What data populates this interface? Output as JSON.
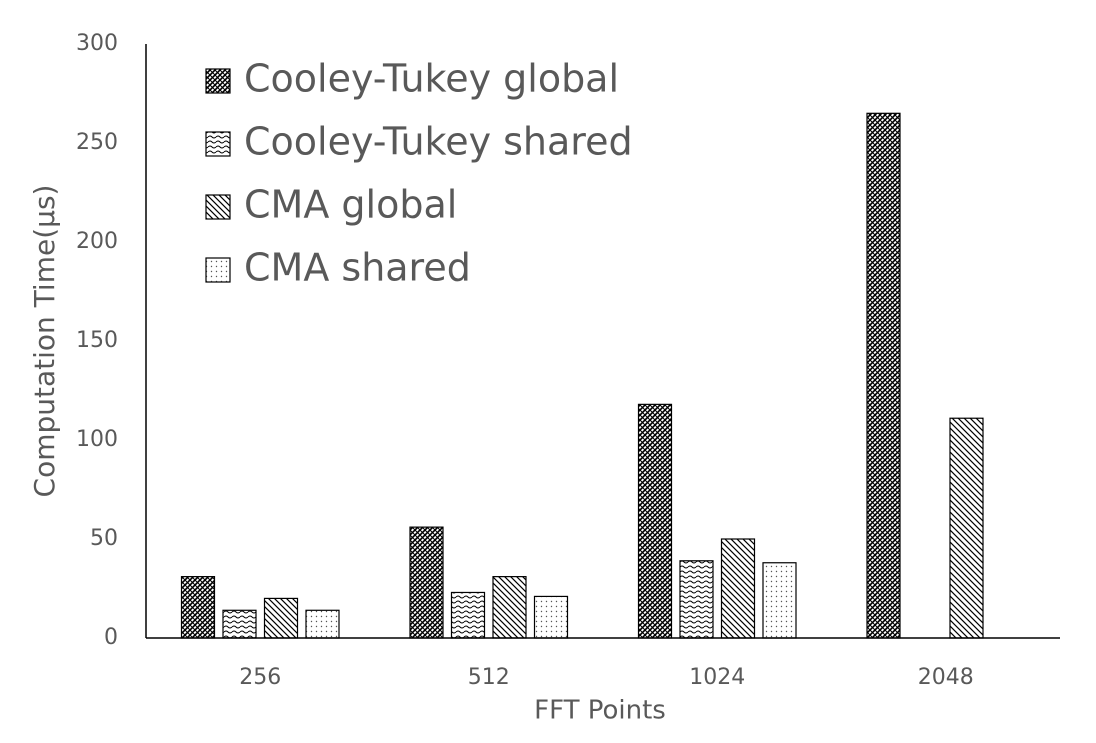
{
  "chart_data": {
    "type": "bar",
    "x_label": "FFT Points",
    "y_label": "Computation Time(μs)",
    "categories": [
      "256",
      "512",
      "1024",
      "2048"
    ],
    "series": [
      {
        "name": "Cooley-Tukey global",
        "pattern": "crosshatch",
        "values": [
          31,
          56,
          118,
          265
        ]
      },
      {
        "name": "Cooley-Tukey shared",
        "pattern": "wave",
        "values": [
          14,
          23,
          39,
          null
        ]
      },
      {
        "name": "CMA global",
        "pattern": "diagonal",
        "values": [
          20,
          31,
          50,
          111
        ]
      },
      {
        "name": "CMA shared",
        "pattern": "dots",
        "values": [
          14,
          21,
          38,
          null
        ]
      }
    ],
    "ylim": [
      0,
      300
    ],
    "yticks": [
      0,
      50,
      100,
      150,
      200,
      250,
      300
    ],
    "legend": "upper-left"
  }
}
